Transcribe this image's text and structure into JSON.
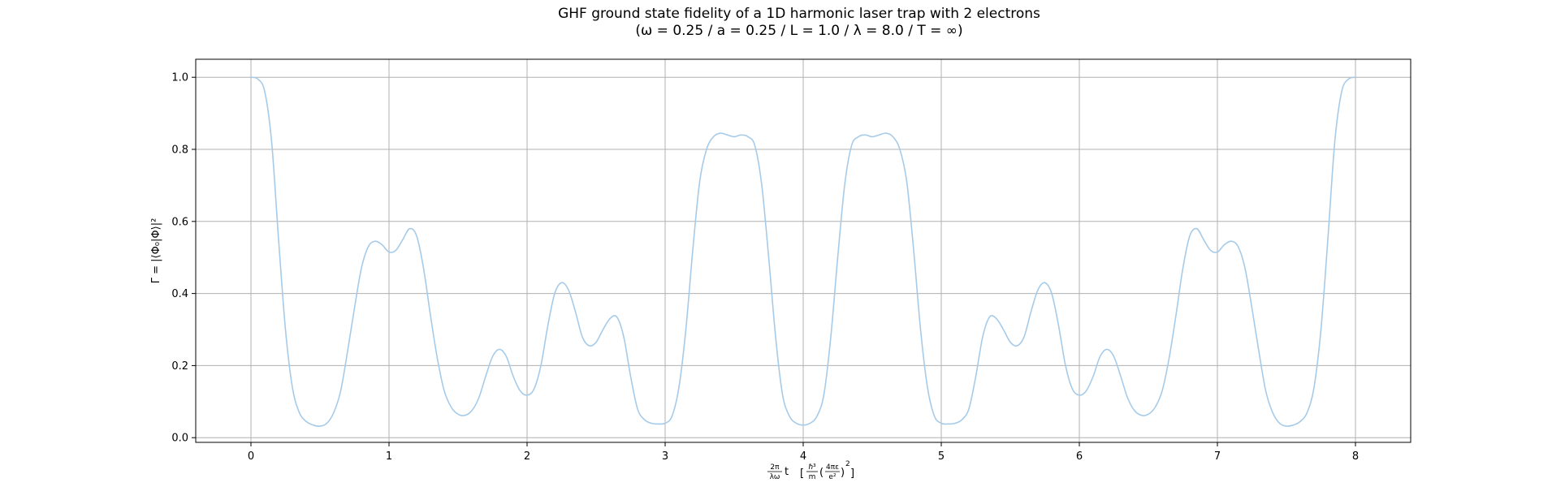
{
  "chart_data": {
    "type": "line",
    "title": "GHF ground state fidelity of a 1D harmonic laser trap with 2 electrons",
    "subtitle": "(ω = 0.25 / a = 0.25 / L = 1.0 / λ = 8.0 / T = ∞)",
    "ylabel": "Γ = |⟨Φ₀|Φ⟩|²",
    "xlabel_parts": {
      "x_frac_num": "2π",
      "x_frac_den": "λω",
      "x_var": "t",
      "unit_hbar": "ℏ³",
      "unit_m": "m",
      "unit_num": "4πε",
      "unit_den": "e²",
      "unit_exp": "2"
    },
    "xlim": [
      -0.4,
      8.4
    ],
    "ylim": [
      -0.013,
      1.05
    ],
    "x_ticks": [
      0,
      1,
      2,
      3,
      4,
      5,
      6,
      7,
      8
    ],
    "y_ticks": [
      0.0,
      0.2,
      0.4,
      0.6,
      0.8,
      1.0
    ],
    "x_tick_labels": [
      "0",
      "1",
      "2",
      "3",
      "4",
      "5",
      "6",
      "7",
      "8"
    ],
    "y_tick_labels": [
      "0.0",
      "0.2",
      "0.4",
      "0.6",
      "0.8",
      "1.0"
    ],
    "grid": true,
    "series": [
      {
        "color": "#a6cbe9",
        "x": [
          0.0,
          0.05,
          0.1,
          0.15,
          0.2,
          0.25,
          0.3,
          0.35,
          0.4,
          0.45,
          0.5,
          0.55,
          0.6,
          0.65,
          0.7,
          0.75,
          0.8,
          0.85,
          0.9,
          0.95,
          1.0,
          1.05,
          1.1,
          1.15,
          1.2,
          1.25,
          1.3,
          1.35,
          1.4,
          1.45,
          1.5,
          1.55,
          1.6,
          1.65,
          1.7,
          1.75,
          1.8,
          1.85,
          1.9,
          1.95,
          2.0,
          2.05,
          2.1,
          2.15,
          2.2,
          2.25,
          2.3,
          2.35,
          2.4,
          2.45,
          2.5,
          2.55,
          2.6,
          2.65,
          2.7,
          2.75,
          2.8,
          2.85,
          2.9,
          2.95,
          3.0,
          3.05,
          3.1,
          3.15,
          3.2,
          3.25,
          3.3,
          3.35,
          3.4,
          3.45,
          3.5,
          3.55,
          3.6,
          3.65,
          3.7,
          3.75,
          3.8,
          3.85,
          3.9,
          3.95,
          4.0,
          4.05,
          4.1,
          4.15,
          4.2,
          4.25,
          4.3,
          4.35,
          4.4,
          4.45,
          4.5,
          4.55,
          4.6,
          4.65,
          4.7,
          4.75,
          4.8,
          4.85,
          4.9,
          4.95,
          5.0,
          5.05,
          5.1,
          5.15,
          5.2,
          5.25,
          5.3,
          5.35,
          5.4,
          5.45,
          5.5,
          5.55,
          5.6,
          5.65,
          5.7,
          5.75,
          5.8,
          5.85,
          5.9,
          5.95,
          6.0,
          6.05,
          6.1,
          6.15,
          6.2,
          6.25,
          6.3,
          6.35,
          6.4,
          6.45,
          6.5,
          6.55,
          6.6,
          6.65,
          6.7,
          6.75,
          6.8,
          6.85,
          6.9,
          6.95,
          7.0,
          7.05,
          7.1,
          7.15,
          7.2,
          7.25,
          7.3,
          7.35,
          7.4,
          7.45,
          7.5,
          7.55,
          7.6,
          7.65,
          7.7,
          7.75,
          7.8,
          7.85,
          7.9,
          7.95,
          8.0
        ],
        "y": [
          1.0,
          0.995,
          0.96,
          0.82,
          0.55,
          0.3,
          0.14,
          0.07,
          0.045,
          0.035,
          0.032,
          0.04,
          0.07,
          0.13,
          0.24,
          0.36,
          0.47,
          0.53,
          0.545,
          0.535,
          0.515,
          0.52,
          0.55,
          0.58,
          0.56,
          0.47,
          0.34,
          0.22,
          0.13,
          0.085,
          0.065,
          0.062,
          0.075,
          0.11,
          0.17,
          0.225,
          0.245,
          0.225,
          0.17,
          0.13,
          0.118,
          0.135,
          0.2,
          0.31,
          0.4,
          0.43,
          0.41,
          0.35,
          0.28,
          0.255,
          0.265,
          0.3,
          0.33,
          0.335,
          0.28,
          0.17,
          0.08,
          0.05,
          0.04,
          0.038,
          0.04,
          0.06,
          0.14,
          0.3,
          0.52,
          0.71,
          0.8,
          0.835,
          0.845,
          0.84,
          0.835,
          0.84,
          0.835,
          0.81,
          0.7,
          0.5,
          0.28,
          0.12,
          0.06,
          0.04,
          0.035,
          0.04,
          0.06,
          0.12,
          0.28,
          0.5,
          0.7,
          0.81,
          0.835,
          0.84,
          0.835,
          0.84,
          0.845,
          0.835,
          0.8,
          0.71,
          0.52,
          0.3,
          0.14,
          0.06,
          0.04,
          0.038,
          0.04,
          0.05,
          0.08,
          0.17,
          0.28,
          0.335,
          0.33,
          0.3,
          0.265,
          0.255,
          0.28,
          0.35,
          0.41,
          0.43,
          0.4,
          0.31,
          0.2,
          0.135,
          0.118,
          0.13,
          0.17,
          0.225,
          0.245,
          0.225,
          0.17,
          0.11,
          0.075,
          0.062,
          0.065,
          0.085,
          0.13,
          0.22,
          0.34,
          0.47,
          0.56,
          0.58,
          0.55,
          0.52,
          0.515,
          0.535,
          0.545,
          0.53,
          0.47,
          0.36,
          0.24,
          0.13,
          0.07,
          0.04,
          0.032,
          0.035,
          0.045,
          0.07,
          0.14,
          0.3,
          0.55,
          0.82,
          0.96,
          0.995,
          1.0
        ]
      }
    ]
  }
}
